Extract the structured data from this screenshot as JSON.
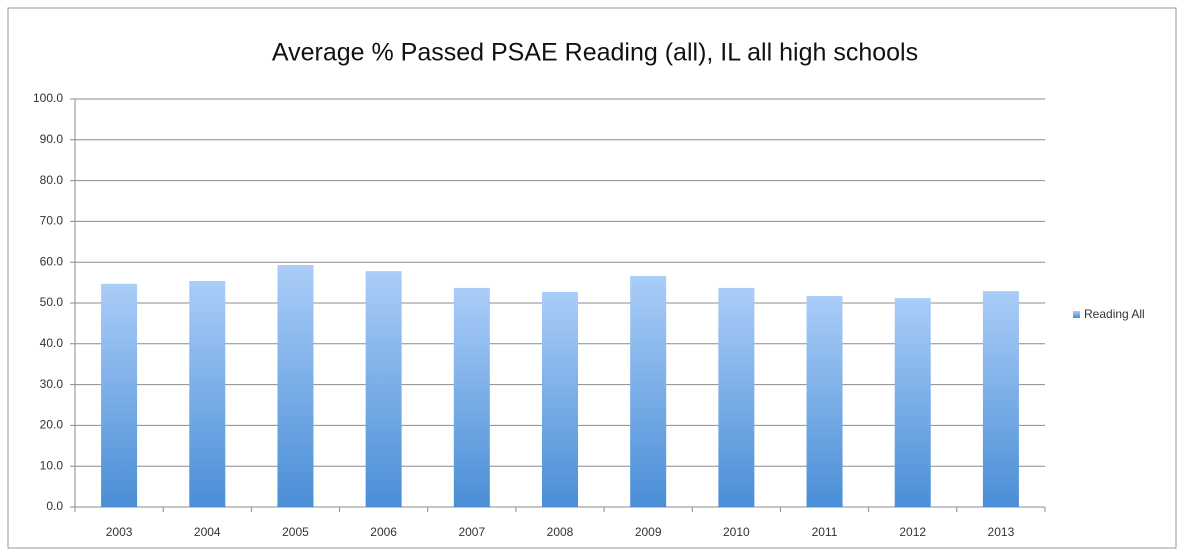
{
  "chart_data": {
    "type": "bar",
    "title": "Average % Passed PSAE Reading (all), IL all high schools",
    "categories": [
      "2003",
      "2004",
      "2005",
      "2006",
      "2007",
      "2008",
      "2009",
      "2010",
      "2011",
      "2012",
      "2013"
    ],
    "series": [
      {
        "name": "Reading All",
        "color": [
          "#aacdf8",
          "#4a8ed6"
        ],
        "values": [
          54.7,
          55.4,
          59.3,
          57.8,
          53.7,
          52.7,
          56.6,
          53.7,
          51.7,
          51.2,
          52.9
        ]
      }
    ],
    "ylim": [
      0,
      100
    ],
    "yticks": [
      {
        "value": 0,
        "label": "0.0"
      },
      {
        "value": 10,
        "label": "10.0"
      },
      {
        "value": 20,
        "label": "20.0"
      },
      {
        "value": 30,
        "label": "30.0"
      },
      {
        "value": 40,
        "label": "40.0"
      },
      {
        "value": 50,
        "label": "50.0"
      },
      {
        "value": 60,
        "label": "60.0"
      },
      {
        "value": 70,
        "label": "70.0"
      },
      {
        "value": 80,
        "label": "80.0"
      },
      {
        "value": 90,
        "label": "90.0"
      },
      {
        "value": 100,
        "label": "100.0"
      }
    ],
    "grid": true,
    "legend": "right"
  }
}
